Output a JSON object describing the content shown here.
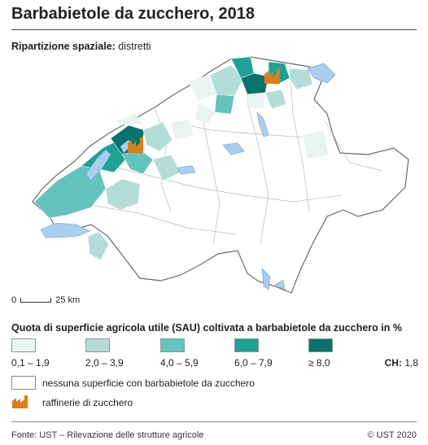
{
  "title": "Barbabietole da zucchero, 2018",
  "subtitle_label": "Ripartizione spaziale:",
  "subtitle_value": "distretti",
  "scale": {
    "zero": "0",
    "distance": "25 km"
  },
  "legend": {
    "title": "Quota di superficie agricola utile (SAU) coltivata a barbabietole da zucchero in %",
    "classes": [
      {
        "label": "0,1 – 1,9",
        "color": "#e8f4f2"
      },
      {
        "label": "2,0 – 3,9",
        "color": "#b4ddd7"
      },
      {
        "label": "4,0 – 5,9",
        "color": "#63c3bd"
      },
      {
        "label": "6,0 – 7,9",
        "color": "#1ea293"
      },
      {
        "label": "≥ 8,0",
        "color": "#08726c"
      }
    ],
    "ch_label": "CH:",
    "ch_value": "1,8",
    "none_label": "nessuna superficie con barbabietole da zucchero",
    "refinery_label": "raffinerie di zucchero",
    "refinery_color": "#e07c16"
  },
  "lake_color": "#a9cfee",
  "footer": {
    "source": "Fonte: UST – Rilevazione delle strutture agricole",
    "copyright": "© UST 2020"
  }
}
